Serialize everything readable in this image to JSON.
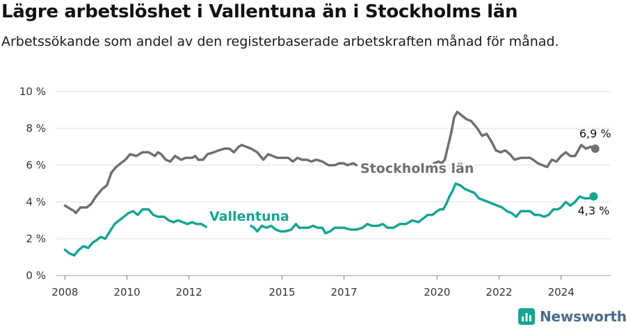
{
  "header": {
    "title": "Lägre arbetslöshet i Vallentuna än i Stockholms län",
    "subtitle": "Arbetssökande som andel av den registerbaserade arbetskraften månad för månad."
  },
  "brand": {
    "name": "Newsworthy",
    "icon": "newsworthy-logo-icon",
    "color": "#4a6b8a"
  },
  "chart_data": {
    "type": "line",
    "xlim": [
      2007.7,
      2025.6
    ],
    "ylim": [
      0,
      10
    ],
    "yticks": [
      0,
      2,
      4,
      6,
      8,
      10
    ],
    "ytick_labels": [
      "0 %",
      "2 %",
      "4 %",
      "6 %",
      "8 %",
      "10 %"
    ],
    "xticks": [
      2008,
      2010,
      2012,
      2015,
      2017,
      2020,
      2022,
      2024
    ],
    "xtick_labels": [
      "2008",
      "2010",
      "2012",
      "2015",
      "2017",
      "2020",
      "2022",
      "2024"
    ],
    "grid": true,
    "series": [
      {
        "name": "Stockholms län",
        "color": "#6e6e73",
        "end_label": "6,9 %",
        "points": [
          [
            2008.0,
            3.8
          ],
          [
            2008.1,
            3.7
          ],
          [
            2008.2,
            3.6
          ],
          [
            2008.3,
            3.5
          ],
          [
            2008.35,
            3.4
          ],
          [
            2008.5,
            3.7
          ],
          [
            2008.7,
            3.7
          ],
          [
            2008.85,
            3.9
          ],
          [
            2009.0,
            4.3
          ],
          [
            2009.2,
            4.7
          ],
          [
            2009.35,
            4.9
          ],
          [
            2009.5,
            5.6
          ],
          [
            2009.65,
            5.9
          ],
          [
            2009.8,
            6.1
          ],
          [
            2009.95,
            6.3
          ],
          [
            2010.1,
            6.6
          ],
          [
            2010.3,
            6.5
          ],
          [
            2010.5,
            6.7
          ],
          [
            2010.7,
            6.7
          ],
          [
            2010.9,
            6.5
          ],
          [
            2011.0,
            6.7
          ],
          [
            2011.1,
            6.6
          ],
          [
            2011.25,
            6.3
          ],
          [
            2011.4,
            6.2
          ],
          [
            2011.55,
            6.5
          ],
          [
            2011.75,
            6.3
          ],
          [
            2011.9,
            6.4
          ],
          [
            2012.1,
            6.4
          ],
          [
            2012.2,
            6.5
          ],
          [
            2012.3,
            6.3
          ],
          [
            2012.45,
            6.3
          ],
          [
            2012.6,
            6.6
          ],
          [
            2012.8,
            6.7
          ],
          [
            2012.95,
            6.8
          ],
          [
            2013.15,
            6.9
          ],
          [
            2013.3,
            6.9
          ],
          [
            2013.45,
            6.7
          ],
          [
            2013.6,
            7.0
          ],
          [
            2013.7,
            7.1
          ],
          [
            2013.85,
            7.0
          ],
          [
            2014.0,
            6.9
          ],
          [
            2014.2,
            6.7
          ],
          [
            2014.4,
            6.3
          ],
          [
            2014.55,
            6.6
          ],
          [
            2014.7,
            6.5
          ],
          [
            2014.85,
            6.4
          ],
          [
            2015.0,
            6.4
          ],
          [
            2015.2,
            6.4
          ],
          [
            2015.35,
            6.2
          ],
          [
            2015.5,
            6.4
          ],
          [
            2015.65,
            6.3
          ],
          [
            2015.8,
            6.3
          ],
          [
            2015.95,
            6.2
          ],
          [
            2016.1,
            6.3
          ],
          [
            2016.3,
            6.2
          ],
          [
            2016.5,
            6.0
          ],
          [
            2016.7,
            6.0
          ],
          [
            2016.85,
            6.1
          ],
          [
            2017.0,
            6.1
          ],
          [
            2017.1,
            6.0
          ],
          [
            2017.2,
            6.05
          ],
          [
            2017.3,
            6.1
          ],
          [
            2017.4,
            6.0
          ]
        ],
        "points_2": [
          [
            2019.9,
            6.1
          ],
          [
            2020.05,
            6.2
          ],
          [
            2020.15,
            6.1
          ],
          [
            2020.25,
            6.3
          ],
          [
            2020.35,
            7.0
          ],
          [
            2020.45,
            7.7
          ],
          [
            2020.55,
            8.6
          ],
          [
            2020.65,
            8.9
          ],
          [
            2020.8,
            8.7
          ],
          [
            2020.95,
            8.5
          ],
          [
            2021.1,
            8.4
          ],
          [
            2021.3,
            8.0
          ],
          [
            2021.45,
            7.6
          ],
          [
            2021.6,
            7.7
          ],
          [
            2021.75,
            7.3
          ],
          [
            2021.9,
            6.8
          ],
          [
            2022.05,
            6.7
          ],
          [
            2022.2,
            6.8
          ],
          [
            2022.35,
            6.6
          ],
          [
            2022.5,
            6.3
          ],
          [
            2022.7,
            6.4
          ],
          [
            2022.9,
            6.4
          ],
          [
            2023.0,
            6.4
          ],
          [
            2023.1,
            6.3
          ],
          [
            2023.25,
            6.1
          ],
          [
            2023.4,
            6.0
          ],
          [
            2023.55,
            5.9
          ],
          [
            2023.7,
            6.3
          ],
          [
            2023.85,
            6.2
          ],
          [
            2024.0,
            6.5
          ],
          [
            2024.15,
            6.7
          ],
          [
            2024.3,
            6.5
          ],
          [
            2024.45,
            6.5
          ],
          [
            2024.55,
            6.8
          ],
          [
            2024.65,
            7.1
          ],
          [
            2024.8,
            6.9
          ],
          [
            2024.95,
            7.0
          ],
          [
            2025.1,
            6.9
          ]
        ]
      },
      {
        "name": "Vallentuna",
        "color": "#16a493",
        "end_label": "4,3 %",
        "points": [
          [
            2008.0,
            1.4
          ],
          [
            2008.15,
            1.2
          ],
          [
            2008.3,
            1.1
          ],
          [
            2008.45,
            1.4
          ],
          [
            2008.6,
            1.6
          ],
          [
            2008.75,
            1.5
          ],
          [
            2008.9,
            1.8
          ],
          [
            2009.0,
            1.9
          ],
          [
            2009.15,
            2.1
          ],
          [
            2009.3,
            2.0
          ],
          [
            2009.45,
            2.4
          ],
          [
            2009.6,
            2.8
          ],
          [
            2009.75,
            3.0
          ],
          [
            2009.9,
            3.2
          ],
          [
            2010.05,
            3.4
          ],
          [
            2010.2,
            3.5
          ],
          [
            2010.35,
            3.3
          ],
          [
            2010.5,
            3.6
          ],
          [
            2010.7,
            3.6
          ],
          [
            2010.85,
            3.3
          ],
          [
            2011.0,
            3.2
          ],
          [
            2011.2,
            3.2
          ],
          [
            2011.35,
            3.0
          ],
          [
            2011.5,
            2.9
          ],
          [
            2011.65,
            3.0
          ],
          [
            2011.8,
            2.9
          ],
          [
            2011.95,
            2.8
          ],
          [
            2012.1,
            2.9
          ],
          [
            2012.25,
            2.8
          ],
          [
            2012.4,
            2.8
          ],
          [
            2012.55,
            2.65
          ]
        ],
        "points_2": [
          [
            2014.0,
            2.7
          ],
          [
            2014.1,
            2.6
          ],
          [
            2014.2,
            2.4
          ],
          [
            2014.35,
            2.7
          ],
          [
            2014.5,
            2.6
          ],
          [
            2014.65,
            2.7
          ],
          [
            2014.8,
            2.5
          ],
          [
            2014.95,
            2.4
          ],
          [
            2015.1,
            2.4
          ],
          [
            2015.3,
            2.5
          ],
          [
            2015.45,
            2.8
          ],
          [
            2015.55,
            2.6
          ],
          [
            2015.7,
            2.6
          ],
          [
            2015.85,
            2.6
          ],
          [
            2016.0,
            2.7
          ],
          [
            2016.15,
            2.6
          ],
          [
            2016.3,
            2.6
          ],
          [
            2016.4,
            2.3
          ],
          [
            2016.55,
            2.4
          ],
          [
            2016.7,
            2.6
          ],
          [
            2016.85,
            2.6
          ],
          [
            2017.0,
            2.6
          ],
          [
            2017.2,
            2.5
          ],
          [
            2017.4,
            2.5
          ],
          [
            2017.6,
            2.6
          ],
          [
            2017.75,
            2.8
          ],
          [
            2017.9,
            2.7
          ],
          [
            2018.1,
            2.7
          ],
          [
            2018.25,
            2.8
          ],
          [
            2018.4,
            2.6
          ],
          [
            2018.6,
            2.6
          ],
          [
            2018.8,
            2.8
          ],
          [
            2019.0,
            2.8
          ],
          [
            2019.2,
            3.0
          ],
          [
            2019.4,
            2.9
          ],
          [
            2019.55,
            3.1
          ],
          [
            2019.7,
            3.3
          ],
          [
            2019.85,
            3.3
          ],
          [
            2020.0,
            3.5
          ],
          [
            2020.1,
            3.6
          ],
          [
            2020.2,
            3.6
          ],
          [
            2020.3,
            3.9
          ],
          [
            2020.4,
            4.3
          ],
          [
            2020.5,
            4.6
          ],
          [
            2020.6,
            5.0
          ],
          [
            2020.75,
            4.9
          ],
          [
            2020.9,
            4.7
          ],
          [
            2021.05,
            4.6
          ],
          [
            2021.2,
            4.5
          ],
          [
            2021.35,
            4.2
          ],
          [
            2021.5,
            4.1
          ],
          [
            2021.65,
            4.0
          ],
          [
            2021.8,
            3.9
          ],
          [
            2021.95,
            3.8
          ],
          [
            2022.1,
            3.7
          ],
          [
            2022.25,
            3.5
          ],
          [
            2022.4,
            3.4
          ],
          [
            2022.55,
            3.2
          ],
          [
            2022.7,
            3.5
          ],
          [
            2022.85,
            3.5
          ],
          [
            2023.0,
            3.5
          ],
          [
            2023.15,
            3.3
          ],
          [
            2023.3,
            3.3
          ],
          [
            2023.45,
            3.2
          ],
          [
            2023.6,
            3.3
          ],
          [
            2023.75,
            3.6
          ],
          [
            2023.9,
            3.6
          ],
          [
            2024.0,
            3.7
          ],
          [
            2024.15,
            4.0
          ],
          [
            2024.3,
            3.8
          ],
          [
            2024.45,
            4.0
          ],
          [
            2024.6,
            4.3
          ],
          [
            2024.75,
            4.2
          ],
          [
            2024.9,
            4.2
          ],
          [
            2025.05,
            4.3
          ]
        ]
      }
    ]
  }
}
